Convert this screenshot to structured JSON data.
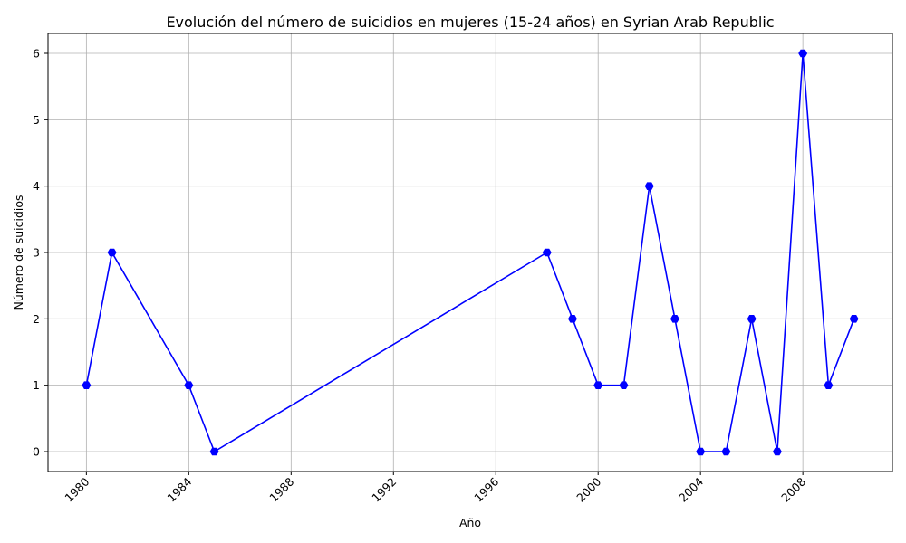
{
  "chart_data": {
    "type": "line",
    "title": "Evolución del número de suicidios en mujeres (15-24 años) en Syrian Arab Republic",
    "xlabel": "Año",
    "ylabel": "Número de suicidios",
    "x": [
      1980,
      1981,
      1984,
      1985,
      1998,
      1999,
      2000,
      2001,
      2002,
      2003,
      2004,
      2005,
      2006,
      2007,
      2008,
      2009,
      2010
    ],
    "series": [
      {
        "values": [
          1,
          3,
          1,
          0,
          3,
          2,
          1,
          1,
          4,
          2,
          0,
          0,
          2,
          0,
          6,
          1,
          2
        ]
      }
    ],
    "xlim": [
      1978.5,
      2011.5
    ],
    "ylim": [
      -0.3,
      6.3
    ],
    "xticks": [
      "1980",
      "1984",
      "1988",
      "1992",
      "1996",
      "2000",
      "2004",
      "2008"
    ],
    "yticks": [
      "0",
      "1",
      "2",
      "3",
      "4",
      "5",
      "6"
    ],
    "grid": true,
    "color": "#0000ff",
    "marker": "hexagon"
  }
}
